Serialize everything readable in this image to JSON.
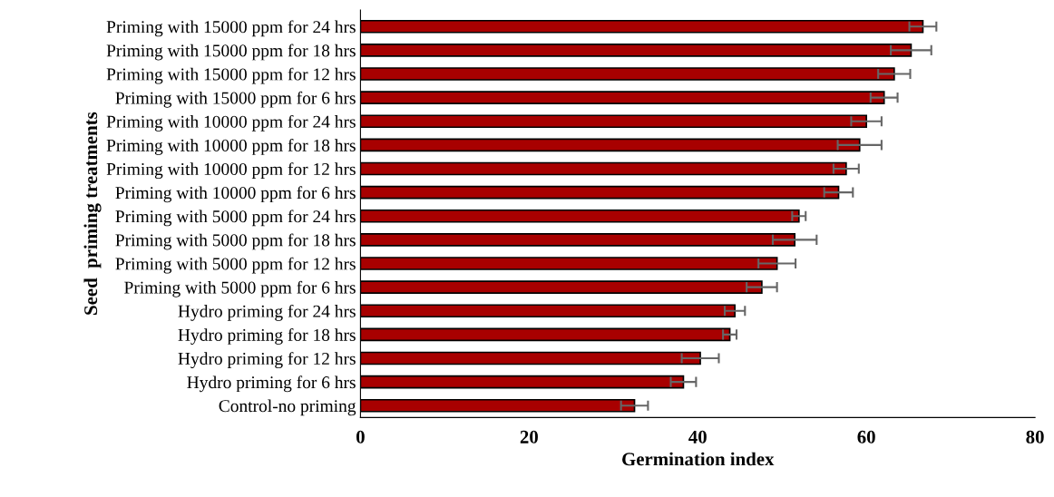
{
  "chart_data": {
    "type": "bar",
    "orientation": "horizontal",
    "xlabel": "Germination index",
    "ylabel": "Seed  priming treatments",
    "categories": [
      "Priming with 15000 ppm for 24 hrs",
      "Priming with 15000 ppm for 18 hrs",
      "Priming with 15000 ppm for 12 hrs",
      "Priming with 15000 ppm for 6 hrs",
      "Priming with 10000 ppm for 24 hrs",
      "Priming with 10000 ppm for 18 hrs",
      "Priming with 10000 ppm for 12 hrs",
      "Priming with 10000 ppm for 6 hrs",
      "Priming with 5000 ppm for 24 hrs",
      "Priming with 5000 ppm for 18 hrs",
      "Priming with 5000 ppm for 12 hrs",
      "Priming with 5000 ppm for 6 hrs",
      "Hydro priming for 24 hrs",
      "Hydro priming for 18 hrs",
      "Hydro priming for 12 hrs",
      "Hydro priming for 6 hrs",
      "Control-no priming"
    ],
    "values": [
      66.7,
      65.3,
      63.3,
      62.1,
      60.0,
      59.2,
      57.6,
      56.7,
      52.0,
      51.5,
      49.4,
      47.6,
      44.4,
      43.8,
      40.3,
      38.3,
      32.5
    ],
    "errors": [
      1.6,
      2.4,
      1.9,
      1.6,
      1.8,
      2.6,
      1.5,
      1.7,
      0.8,
      2.6,
      2.2,
      1.8,
      1.2,
      0.8,
      2.2,
      1.5,
      1.6
    ],
    "color": "#a80000",
    "xlim": [
      0,
      80
    ],
    "xticks": [
      0,
      20,
      40,
      60,
      80
    ],
    "grid": false,
    "legend": false
  }
}
